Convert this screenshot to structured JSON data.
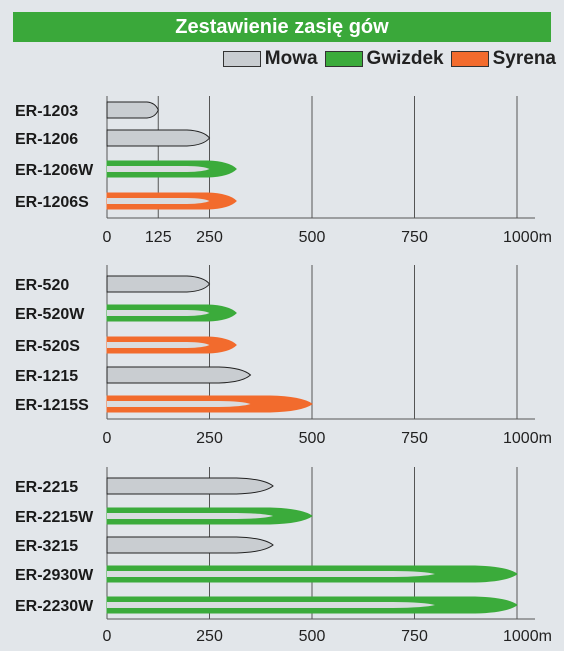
{
  "title": "Zestawienie zasię gów",
  "legend": [
    {
      "label": "Mowa",
      "color": "#c9cdd1"
    },
    {
      "label": "Gwizdek",
      "color": "#3bab3b"
    },
    {
      "label": "Syrena",
      "color": "#f26b2d"
    }
  ],
  "colors": {
    "mowa": "#c9cdd1",
    "gwizdek": "#3bab3b",
    "syrena": "#f26b2d",
    "inner_mowa": "#d9dcdf",
    "grid": "#555555",
    "background": "#e2e6ea",
    "title_bg": "#3aa83a"
  },
  "chart_data": [
    {
      "type": "bar",
      "categories": [
        "ER-1203",
        "ER-1206",
        "ER-1206W",
        "ER-1206S"
      ],
      "series": [
        {
          "name": "Mowa",
          "values": [
            125,
            250,
            250,
            250
          ]
        },
        {
          "name": "Gwizdek",
          "values": [
            null,
            null,
            315,
            null
          ]
        },
        {
          "name": "Syrena",
          "values": [
            null,
            null,
            null,
            315
          ]
        }
      ],
      "x_ticks": [
        "0",
        "125",
        "250",
        "500",
        "750",
        "1000m"
      ],
      "x_tick_values": [
        0,
        125,
        250,
        500,
        750,
        1000
      ],
      "xlim": [
        0,
        1000
      ]
    },
    {
      "type": "bar",
      "categories": [
        "ER-520",
        "ER-520W",
        "ER-520S",
        "ER-1215",
        "ER-1215S"
      ],
      "series": [
        {
          "name": "Mowa",
          "values": [
            250,
            250,
            250,
            350,
            350
          ]
        },
        {
          "name": "Gwizdek",
          "values": [
            null,
            315,
            null,
            null,
            null
          ]
        },
        {
          "name": "Syrena",
          "values": [
            null,
            null,
            315,
            null,
            500
          ]
        }
      ],
      "x_ticks": [
        "0",
        "250",
        "500",
        "750",
        "1000m"
      ],
      "x_tick_values": [
        0,
        250,
        500,
        750,
        1000
      ],
      "xlim": [
        0,
        1000
      ]
    },
    {
      "type": "bar",
      "categories": [
        "ER-2215",
        "ER-2215W",
        "ER-3215",
        "ER-2930W",
        "ER-2230W"
      ],
      "series": [
        {
          "name": "Mowa",
          "values": [
            405,
            405,
            405,
            800,
            800
          ]
        },
        {
          "name": "Gwizdek",
          "values": [
            null,
            500,
            null,
            1000,
            1000
          ]
        }
      ],
      "x_ticks": [
        "0",
        "250",
        "500",
        "750",
        "1000m"
      ],
      "x_tick_values": [
        0,
        250,
        500,
        750,
        1000
      ],
      "xlim": [
        0,
        1000
      ]
    }
  ]
}
